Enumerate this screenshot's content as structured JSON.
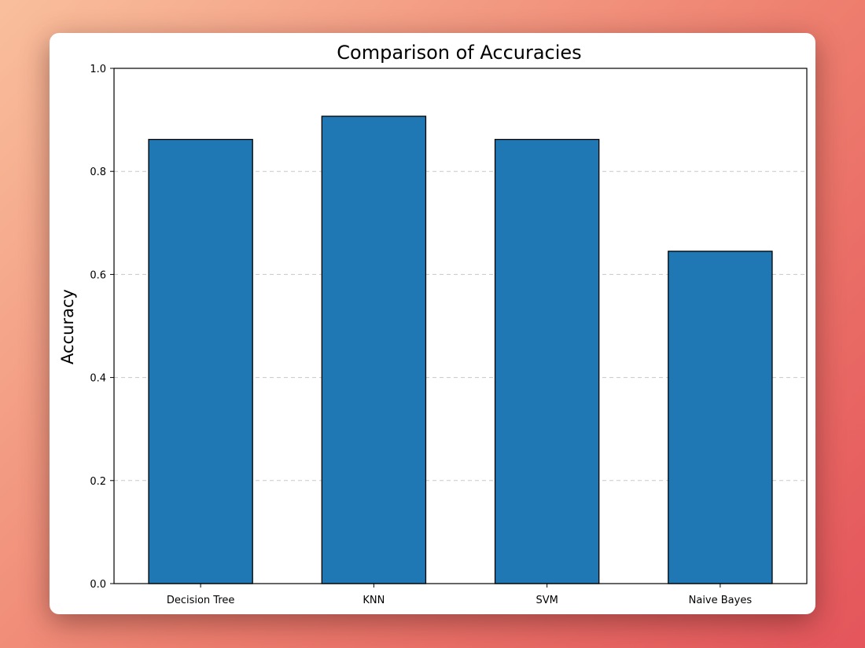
{
  "chart_data": {
    "type": "bar",
    "title": "Comparison of Accuracies",
    "xlabel": "",
    "ylabel": "Accuracy",
    "categories": [
      "Decision Tree",
      "KNN",
      "SVM",
      "Naive Bayes"
    ],
    "values": [
      0.862,
      0.907,
      0.862,
      0.645
    ],
    "ylim": [
      0,
      1
    ],
    "yticks": [
      "0.0",
      "0.2",
      "0.4",
      "0.6",
      "0.8",
      "1.0"
    ],
    "grid": "horizontal-dashed",
    "legend": "none",
    "colors": {
      "bar_fill": "#1f77b4",
      "bar_edge": "#000000",
      "grid": "#c8c8c8"
    }
  }
}
